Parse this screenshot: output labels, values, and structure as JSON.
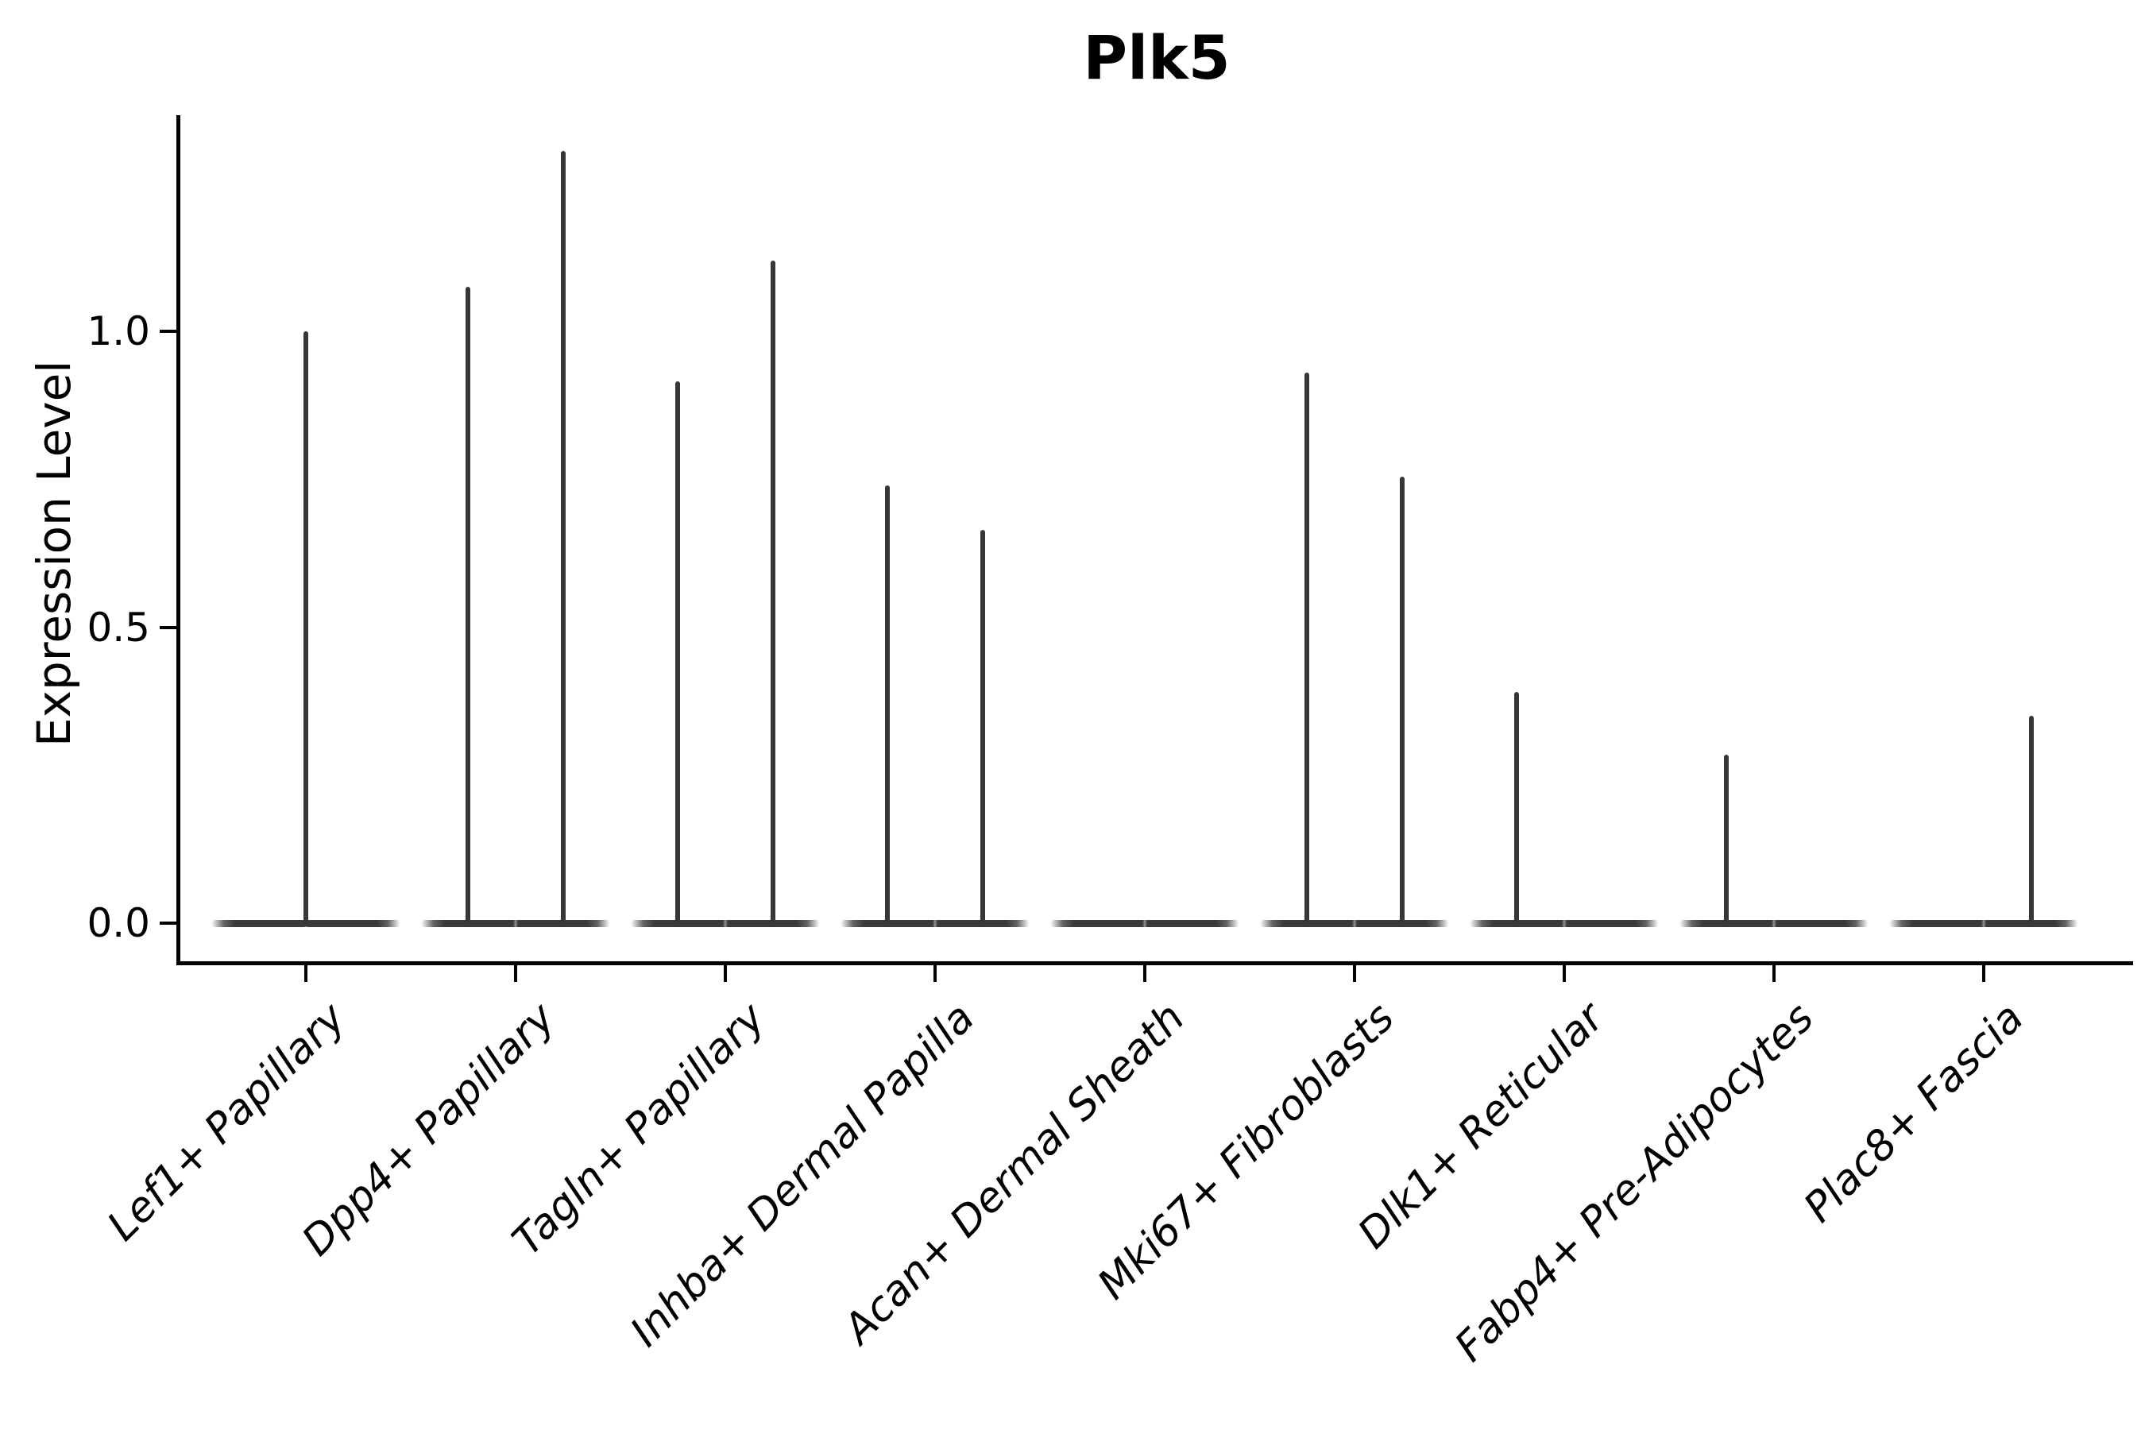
{
  "title": "Plk5",
  "chart_data": {
    "type": "violin",
    "title": "Plk5",
    "xlabel": "",
    "ylabel": "Expression Level",
    "ylim": [
      -0.07,
      1.37
    ],
    "grid": false,
    "legend": "none",
    "axis_color": "#000000",
    "violin_color": "#3a3a3a",
    "background_color": "#ffffff",
    "yticks": [
      {
        "value": 0.0,
        "label": "0.0"
      },
      {
        "value": 0.5,
        "label": "0.5"
      },
      {
        "value": 1.0,
        "label": "1.0"
      }
    ],
    "categories": [
      "Lef1+ Papillary",
      "Dpp4+ Papillary",
      "Tagln+ Papillary",
      "Inhba+ Dermal Papilla",
      "Acan+ Dermal Sheath",
      "Mki67+ Fibroblasts",
      "Dlk1+ Reticular",
      "Fabp4+ Pre-Adipocytes",
      "Plac8+ Fascia"
    ],
    "violins": [
      {
        "category": "Lef1+ Papillary",
        "baseline_value": 0.0,
        "spikes": [
          {
            "offset": 0.0,
            "max": 1.0
          }
        ]
      },
      {
        "category": "Dpp4+ Papillary",
        "baseline_value": 0.0,
        "spikes": [
          {
            "offset": -0.227,
            "max": 1.075
          },
          {
            "offset": 0.227,
            "max": 1.305
          }
        ]
      },
      {
        "category": "Tagln+ Papillary",
        "baseline_value": 0.0,
        "spikes": [
          {
            "offset": -0.227,
            "max": 0.915
          },
          {
            "offset": 0.227,
            "max": 1.12
          }
        ]
      },
      {
        "category": "Inhba+ Dermal Papilla",
        "baseline_value": 0.0,
        "spikes": [
          {
            "offset": -0.227,
            "max": 0.74
          },
          {
            "offset": 0.227,
            "max": 0.665
          }
        ]
      },
      {
        "category": "Acan+ Dermal Sheath",
        "baseline_value": 0.0,
        "spikes": []
      },
      {
        "category": "Mki67+ Fibroblasts",
        "baseline_value": 0.0,
        "spikes": [
          {
            "offset": -0.227,
            "max": 0.93
          },
          {
            "offset": 0.227,
            "max": 0.755
          }
        ]
      },
      {
        "category": "Dlk1+ Reticular",
        "baseline_value": 0.0,
        "spikes": [
          {
            "offset": -0.227,
            "max": 0.39
          }
        ]
      },
      {
        "category": "Fabp4+ Pre-Adipocytes",
        "baseline_value": 0.0,
        "spikes": [
          {
            "offset": -0.227,
            "max": 0.285
          }
        ]
      },
      {
        "category": "Plac8+ Fascia",
        "baseline_value": 0.0,
        "spikes": [
          {
            "offset": 0.227,
            "max": 0.35
          }
        ]
      }
    ]
  }
}
